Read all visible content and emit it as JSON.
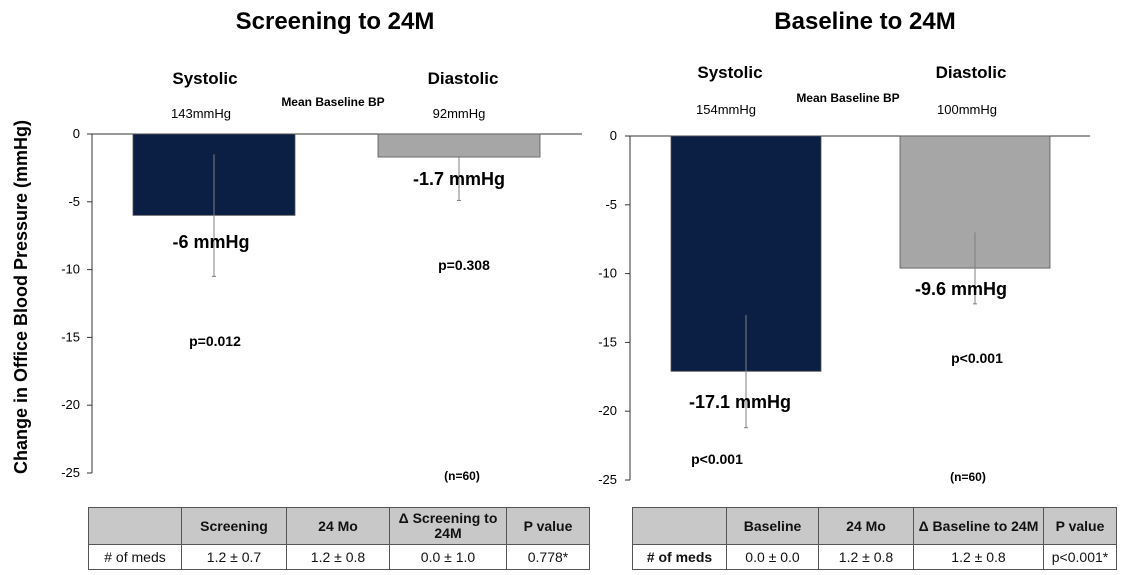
{
  "y_axis_label": "Change in Office Blood Pressure (mmHg)",
  "colors": {
    "systolic": "#0b1f45",
    "diastolic": "#a6a6a6",
    "error_bar": "#7f7f7f"
  },
  "chart_data": [
    {
      "type": "bar",
      "title": "Screening to 24M",
      "mean_baseline_label": "Mean Baseline BP",
      "categories": [
        "Systolic",
        "Diastolic"
      ],
      "category_values": [
        "143mmHg",
        "92mmHg"
      ],
      "values": [
        -6,
        -1.7
      ],
      "error_bars": [
        [
          -10.5,
          -1.5
        ],
        [
          -4.9,
          -1.7
        ]
      ],
      "value_labels": [
        "-6 mmHg",
        "-1.7 mmHg"
      ],
      "p_values": [
        "p=0.012",
        "p=0.308"
      ],
      "n_label": "(n=60)",
      "ylim": [
        -25,
        0
      ],
      "yticks": [
        "0",
        "-5",
        "-10",
        "-15",
        "-20",
        "-25"
      ]
    },
    {
      "type": "bar",
      "title": "Baseline to 24M",
      "mean_baseline_label": "Mean Baseline BP",
      "categories": [
        "Systolic",
        "Diastolic"
      ],
      "category_values": [
        "154mmHg",
        "100mmHg"
      ],
      "values": [
        -17.1,
        -9.6
      ],
      "error_bars": [
        [
          -21.2,
          -13.0
        ],
        [
          -12.2,
          -7.0
        ]
      ],
      "value_labels": [
        "-17.1 mmHg",
        "-9.6 mmHg"
      ],
      "p_values": [
        "p<0.001",
        "p<0.001"
      ],
      "n_label": "(n=60)",
      "ylim": [
        -25,
        0
      ],
      "yticks": [
        "0",
        "-5",
        "-10",
        "-15",
        "-20",
        "-25"
      ]
    }
  ],
  "tables": [
    {
      "headers": [
        "",
        "Screening",
        "24 Mo",
        "Δ Screening to 24M",
        "P value"
      ],
      "rows": [
        [
          "# of meds",
          "1.2 ± 0.7",
          "1.2 ± 0.8",
          "0.0 ± 1.0",
          "0.778*"
        ]
      ]
    },
    {
      "headers": [
        "",
        "Baseline",
        "24 Mo",
        "Δ  Baseline to 24M",
        "P value"
      ],
      "rows": [
        [
          "# of meds",
          "0.0 ± 0.0",
          "1.2 ± 0.8",
          "1.2 ± 0.8",
          "p<0.001*"
        ]
      ]
    }
  ]
}
